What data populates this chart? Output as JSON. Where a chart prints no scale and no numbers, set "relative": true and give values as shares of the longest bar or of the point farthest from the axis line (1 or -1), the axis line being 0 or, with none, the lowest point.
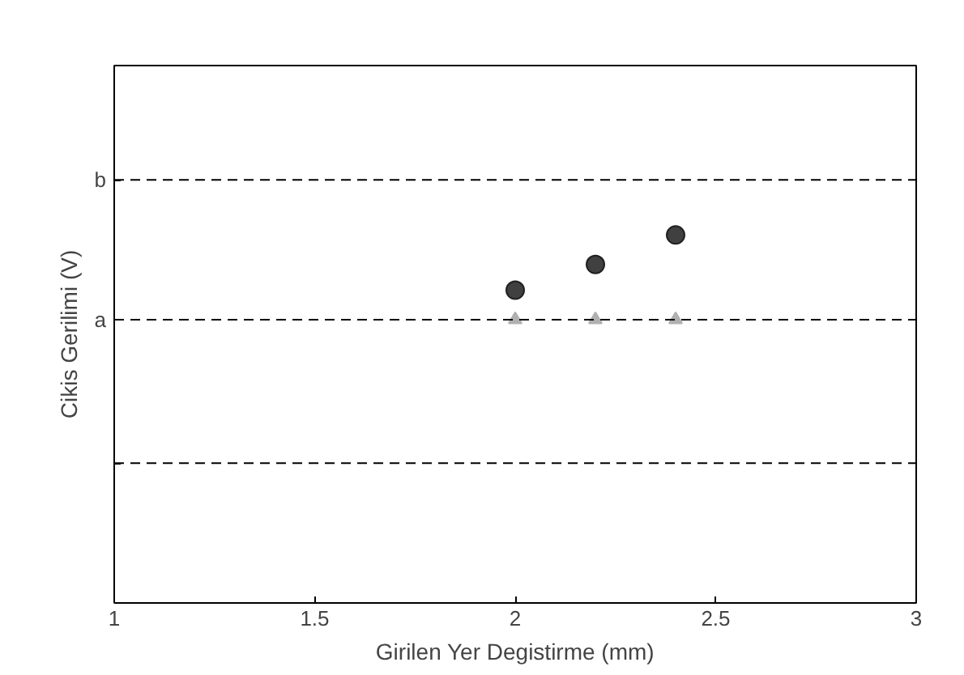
{
  "chart_data": {
    "type": "scatter",
    "xlabel": "Girilen Yer Degistirme (mm)",
    "ylabel": "Cikis Gerilimi (V)",
    "x": [
      2.0,
      2.2,
      2.4
    ],
    "xlim": [
      1,
      3
    ],
    "xticks": [
      1,
      1.5,
      2,
      2.5,
      3
    ],
    "relative": true,
    "grid": false,
    "series": [
      {
        "color": "#404040",
        "marker": "circle",
        "values": [
          0.85,
          0.92,
          1.0
        ]
      },
      {
        "color": "#b0b0b0",
        "marker": "triangle",
        "values": [
          0.77,
          0.77,
          0.77
        ]
      }
    ],
    "ref_lines": [
      {
        "axis": "y",
        "value": 1.15,
        "label": "b",
        "line_style": "dashed",
        "color": "#000000"
      },
      {
        "axis": "y",
        "value": 0.77,
        "label": "a",
        "line_style": "dashed",
        "color": "#000000"
      },
      {
        "axis": "y",
        "value": 0.38,
        "label": null,
        "line_style": "dashed",
        "color": "#000000"
      }
    ]
  }
}
